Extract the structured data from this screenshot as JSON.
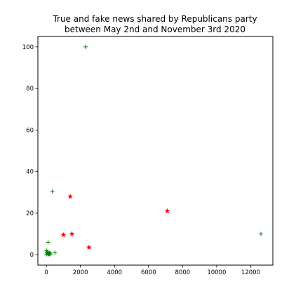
{
  "chart_data": {
    "type": "scatter",
    "title": "True and fake news shared by Republicans party\nbetween May 2nd and November 3rd 2020",
    "xlabel": "",
    "ylabel": "",
    "xlim": [
      -500,
      13300
    ],
    "ylim": [
      -5,
      105
    ],
    "xticks": [
      0,
      2000,
      4000,
      6000,
      8000,
      10000,
      12000
    ],
    "yticks": [
      0,
      20,
      40,
      60,
      80,
      100
    ],
    "grid": false,
    "series": [
      {
        "marker": "plus",
        "color": "#008000",
        "points": [
          {
            "x": 2300,
            "y": 100
          },
          {
            "x": 350,
            "y": 30.5
          },
          {
            "x": 100,
            "y": 6
          },
          {
            "x": 12600,
            "y": 10
          },
          {
            "x": 0,
            "y": 2
          },
          {
            "x": 30,
            "y": 1.2
          },
          {
            "x": 60,
            "y": 0.8
          },
          {
            "x": 90,
            "y": 0.5
          },
          {
            "x": 120,
            "y": 0.3
          },
          {
            "x": 150,
            "y": 0.6
          },
          {
            "x": 200,
            "y": 1
          },
          {
            "x": 250,
            "y": 0.4
          },
          {
            "x": 500,
            "y": 1
          },
          {
            "x": 20,
            "y": 0.2
          },
          {
            "x": 80,
            "y": 1.5
          },
          {
            "x": 180,
            "y": 0.2
          }
        ]
      },
      {
        "marker": "star",
        "color": "#ff0000",
        "points": [
          {
            "x": 1400,
            "y": 28
          },
          {
            "x": 7100,
            "y": 21
          },
          {
            "x": 1000,
            "y": 9.5
          },
          {
            "x": 1500,
            "y": 10
          },
          {
            "x": 2500,
            "y": 3.5
          }
        ]
      }
    ]
  }
}
